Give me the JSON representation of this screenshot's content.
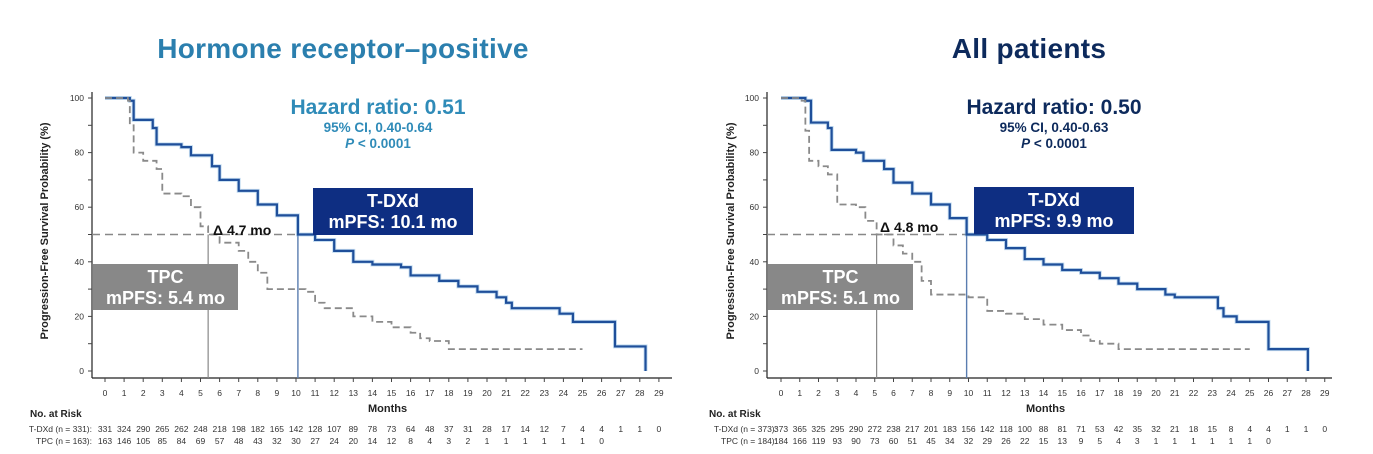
{
  "colors": {
    "tdxd": "#0e2e82",
    "tdxd_line": "#1f4f9a",
    "tpc": "#888888",
    "title_left": "#2b7fae",
    "title_right": "#0d2a5c"
  },
  "chart_data": [
    {
      "type": "line",
      "title": "Hormone receptor–positive",
      "xlabel": "Months",
      "ylabel": "Progression-Free Survival Probability (%)",
      "xlim": [
        0,
        29
      ],
      "ylim": [
        0,
        100
      ],
      "xticks": [
        "0",
        "1",
        "2",
        "3",
        "4",
        "5",
        "6",
        "7",
        "8",
        "9",
        "10",
        "11",
        "12",
        "13",
        "14",
        "15",
        "16",
        "17",
        "18",
        "19",
        "20",
        "21",
        "22",
        "23",
        "24",
        "25",
        "26",
        "27",
        "28",
        "29"
      ],
      "yticks": [
        "0",
        "20",
        "40",
        "60",
        "80",
        "100"
      ],
      "hazard": {
        "main": "Hazard ratio: 0.51",
        "ci": "95% CI, 0.40-0.64",
        "p_prefix": "P",
        "p_rest": " < 0.0001"
      },
      "tdxd_box": {
        "line1": "T-DXd",
        "line2": "mPFS: 10.1 mo"
      },
      "tpc_box": {
        "line1": "TPC",
        "line2": "mPFS: 5.4 mo"
      },
      "delta": "Δ 4.7 mo",
      "median_tdxd": 10.1,
      "median_tpc": 5.4,
      "series": [
        {
          "name": "T-DXd",
          "style": "solid",
          "x": [
            0,
            1.3,
            1.5,
            2.5,
            2.7,
            4.0,
            4.5,
            5.6,
            6.0,
            7.0,
            8.0,
            9.0,
            10.1,
            11.0,
            12.0,
            13.0,
            14.0,
            15.5,
            16.0,
            17.5,
            18.5,
            19.5,
            20.5,
            21.0,
            21.3,
            23.8,
            24.5,
            26.7,
            28.2,
            28.3
          ],
          "y": [
            100,
            99,
            92,
            89,
            83,
            82,
            79,
            75,
            70,
            66,
            61,
            57,
            50,
            48,
            44,
            40,
            39,
            38,
            35,
            33,
            31,
            29,
            27,
            25,
            23,
            21,
            18,
            9,
            9,
            0
          ]
        },
        {
          "name": "TPC",
          "style": "dashed",
          "x": [
            0,
            1.2,
            1.3,
            1.5,
            2.0,
            2.7,
            3.0,
            4.0,
            4.5,
            5.0,
            5.4,
            6.0,
            7.0,
            7.5,
            8.0,
            8.5,
            10.0,
            10.5,
            11.0,
            11.5,
            13.0,
            14.0,
            15.0,
            16.0,
            16.5,
            17.0,
            18.0,
            25.0
          ],
          "y": [
            100,
            99,
            90,
            80,
            77,
            74,
            65,
            64,
            60,
            53,
            50,
            47,
            44,
            40,
            36,
            30,
            30,
            29,
            25,
            23,
            20,
            18,
            16,
            14,
            12,
            11,
            8,
            8
          ]
        }
      ],
      "risk_table": {
        "title": "No. at Risk",
        "rows": [
          {
            "label": "T-DXd (n = 331):",
            "values": [
              "331",
              "324",
              "290",
              "265",
              "262",
              "248",
              "218",
              "198",
              "182",
              "165",
              "142",
              "128",
              "107",
              "89",
              "78",
              "73",
              "64",
              "48",
              "37",
              "31",
              "28",
              "17",
              "14",
              "12",
              "7",
              "4",
              "4",
              "1",
              "1",
              "0"
            ]
          },
          {
            "label": "TPC (n = 163):",
            "values": [
              "163",
              "146",
              "105",
              "85",
              "84",
              "69",
              "57",
              "48",
              "43",
              "32",
              "30",
              "27",
              "24",
              "20",
              "14",
              "12",
              "8",
              "4",
              "3",
              "2",
              "1",
              "1",
              "1",
              "1",
              "1",
              "1",
              "0"
            ]
          }
        ]
      }
    },
    {
      "type": "line",
      "title": "All patients",
      "xlabel": "Months",
      "ylabel": "Progression-Free Survival Probability (%)",
      "xlim": [
        0,
        29
      ],
      "ylim": [
        0,
        100
      ],
      "xticks": [
        "0",
        "1",
        "2",
        "3",
        "4",
        "5",
        "6",
        "7",
        "8",
        "9",
        "10",
        "11",
        "12",
        "13",
        "14",
        "15",
        "16",
        "17",
        "18",
        "19",
        "20",
        "21",
        "22",
        "23",
        "24",
        "25",
        "26",
        "27",
        "28",
        "29"
      ],
      "yticks": [
        "0",
        "20",
        "40",
        "60",
        "80",
        "100"
      ],
      "hazard": {
        "main": "Hazard ratio: 0.50",
        "ci": "95% CI, 0.40-0.63",
        "p_prefix": "P",
        "p_rest": " < 0.0001"
      },
      "tdxd_box": {
        "line1": "T-DXd",
        "line2": "mPFS: 9.9 mo"
      },
      "tpc_box": {
        "line1": "TPC",
        "line2": "mPFS: 5.1 mo"
      },
      "delta": "Δ 4.8 mo",
      "median_tdxd": 9.9,
      "median_tpc": 5.1,
      "series": [
        {
          "name": "T-DXd",
          "style": "solid",
          "x": [
            0,
            1.3,
            1.6,
            2.5,
            2.7,
            4.0,
            4.4,
            5.5,
            6.0,
            7.0,
            8.0,
            9.0,
            9.9,
            11.0,
            12.0,
            13.0,
            14.0,
            15.0,
            16.0,
            17.0,
            18.0,
            19.0,
            20.5,
            21.0,
            23.3,
            23.6,
            24.3,
            26.0,
            28.0,
            28.1
          ],
          "y": [
            100,
            99,
            91,
            89,
            81,
            80,
            77,
            74,
            69,
            65,
            61,
            56,
            50,
            48,
            45,
            41,
            39,
            37,
            36,
            34,
            32,
            30,
            28,
            27,
            23,
            20,
            18,
            8,
            8,
            0
          ]
        },
        {
          "name": "TPC",
          "style": "dashed",
          "x": [
            0,
            1.1,
            1.3,
            1.5,
            2.0,
            2.5,
            3.0,
            4.0,
            4.5,
            5.1,
            6.0,
            6.5,
            7.0,
            7.5,
            8.0,
            10.0,
            11.0,
            12.0,
            13.0,
            14.0,
            15.0,
            16.0,
            16.5,
            17.0,
            18.0,
            25.0
          ],
          "y": [
            100,
            99,
            88,
            77,
            75,
            72,
            61,
            60,
            55,
            50,
            46,
            43,
            40,
            33,
            28,
            27,
            22,
            21,
            19,
            17,
            15,
            13,
            11,
            10,
            8,
            8
          ]
        }
      ],
      "risk_table": {
        "title": "No. at Risk",
        "rows": [
          {
            "label": "T-DXd (n = 373):",
            "values": [
              "373",
              "365",
              "325",
              "295",
              "290",
              "272",
              "238",
              "217",
              "201",
              "183",
              "156",
              "142",
              "118",
              "100",
              "88",
              "81",
              "71",
              "53",
              "42",
              "35",
              "32",
              "21",
              "18",
              "15",
              "8",
              "4",
              "4",
              "1",
              "1",
              "0"
            ]
          },
          {
            "label": "TPC (n = 184):",
            "values": [
              "184",
              "166",
              "119",
              "93",
              "90",
              "73",
              "60",
              "51",
              "45",
              "34",
              "32",
              "29",
              "26",
              "22",
              "15",
              "13",
              "9",
              "5",
              "4",
              "3",
              "1",
              "1",
              "1",
              "1",
              "1",
              "1",
              "0"
            ]
          }
        ]
      }
    }
  ]
}
